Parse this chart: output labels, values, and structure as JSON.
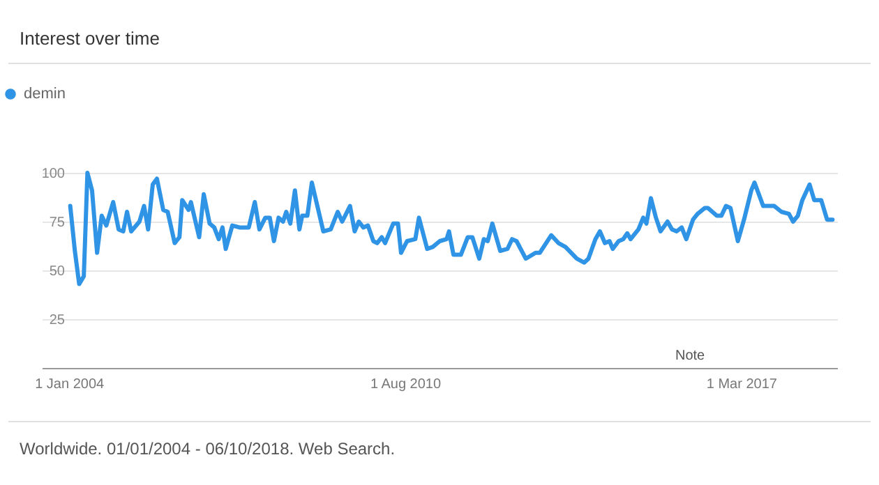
{
  "chart_data": {
    "type": "line",
    "title": "Interest over time",
    "x": [
      "2004-01-11",
      "2004-02-13",
      "2004-03-15",
      "2004-04-17",
      "2004-05-13",
      "2004-06-15",
      "2004-07-21",
      "2004-08-23",
      "2004-09-25",
      "2004-11-13",
      "2004-12-22",
      "2005-01-24",
      "2005-02-20",
      "2005-03-22",
      "2005-05-20",
      "2005-06-22",
      "2005-07-21",
      "2005-08-23",
      "2005-09-22",
      "2005-11-06",
      "2005-12-08",
      "2006-01-27",
      "2006-03-02",
      "2006-03-22",
      "2006-05-06",
      "2006-05-23",
      "2006-07-21",
      "2006-08-23",
      "2006-10-04",
      "2006-11-06",
      "2006-12-08",
      "2007-01-04",
      "2007-01-27",
      "2007-03-15",
      "2007-05-06",
      "2007-07-11",
      "2007-08-23",
      "2007-09-25",
      "2007-11-06",
      "2007-12-08",
      "2008-01-07",
      "2008-02-09",
      "2008-03-12",
      "2008-04-04",
      "2008-05-03",
      "2008-06-05",
      "2008-07-07",
      "2008-07-27",
      "2008-09-02",
      "2008-10-04",
      "2008-11-09",
      "2008-12-25",
      "2009-02-16",
      "2009-04-07",
      "2009-05-09",
      "2009-07-04",
      "2009-08-06",
      "2009-09-05",
      "2009-10-07",
      "2009-11-09",
      "2009-12-18",
      "2010-01-14",
      "2010-02-16",
      "2010-03-12",
      "2010-05-09",
      "2010-06-12",
      "2010-07-04",
      "2010-08-16",
      "2010-10-14",
      "2010-11-09",
      "2011-01-07",
      "2011-02-16",
      "2011-04-07",
      "2011-05-26",
      "2011-06-12",
      "2011-07-14",
      "2011-09-05",
      "2011-10-24",
      "2011-11-26",
      "2012-01-14",
      "2012-02-16",
      "2012-03-15",
      "2012-04-17",
      "2012-06-12",
      "2012-08-03",
      "2012-09-05",
      "2012-10-07",
      "2012-12-12",
      "2013-02-20",
      "2013-03-22",
      "2013-06-12",
      "2013-08-03",
      "2013-09-22",
      "2013-12-12",
      "2014-02-03",
      "2014-03-05",
      "2014-04-24",
      "2014-05-26",
      "2014-07-01",
      "2014-08-03",
      "2014-08-26",
      "2014-10-07",
      "2014-11-09",
      "2014-12-08",
      "2015-01-01",
      "2015-02-26",
      "2015-04-01",
      "2015-04-24",
      "2015-05-26",
      "2015-07-01",
      "2015-08-03",
      "2015-09-22",
      "2015-10-24",
      "2015-11-26",
      "2016-01-01",
      "2016-02-03",
      "2016-03-22",
      "2016-04-24",
      "2016-06-15",
      "2016-07-07",
      "2016-09-08",
      "2016-10-11",
      "2016-11-13",
      "2016-12-15",
      "2017-02-06",
      "2017-03-22",
      "2017-05-13",
      "2017-06-05",
      "2017-08-06",
      "2017-10-24",
      "2017-12-15",
      "2018-02-06",
      "2018-03-08",
      "2018-04-11",
      "2018-05-13",
      "2018-07-04",
      "2018-08-06",
      "2018-09-25",
      "2018-11-06",
      "2018-12-15"
    ],
    "series": [
      {
        "name": "demin",
        "color": "#2f93e6",
        "values": [
          83,
          60,
          43,
          47,
          100,
          91,
          59,
          78,
          73,
          85,
          71,
          70,
          80,
          70,
          75,
          83,
          71,
          94,
          97,
          81,
          80,
          64,
          67,
          86,
          81,
          85,
          67,
          89,
          74,
          72,
          66,
          72,
          61,
          73,
          72,
          72,
          85,
          71,
          77,
          77,
          65,
          77,
          75,
          80,
          74,
          91,
          71,
          78,
          78,
          95,
          84,
          70,
          71,
          80,
          75,
          83,
          70,
          75,
          72,
          73,
          65,
          64,
          67,
          64,
          74,
          74,
          59,
          65,
          66,
          77,
          61,
          62,
          65,
          66,
          70,
          58,
          58,
          67,
          67,
          56,
          66,
          65,
          74,
          60,
          61,
          66,
          65,
          56,
          59,
          59,
          68,
          64,
          62,
          56,
          54,
          56,
          66,
          70,
          64,
          65,
          61,
          65,
          66,
          69,
          66,
          71,
          77,
          74,
          87,
          77,
          70,
          75,
          71,
          70,
          72,
          66,
          76,
          79,
          82,
          82,
          78,
          78,
          83,
          82,
          65,
          76,
          91,
          95,
          83,
          83,
          80,
          79,
          75,
          78,
          86,
          94,
          86,
          86,
          76,
          76
        ]
      }
    ],
    "xlim": [
      "2003-06-22",
      "2019-01-17"
    ],
    "xticks": [
      {
        "value": "2004-01-01",
        "label": "1 Jan 2004"
      },
      {
        "value": "2010-08-01",
        "label": "1 Aug 2010"
      },
      {
        "value": "2017-03-01",
        "label": "1 Mar 2017"
      }
    ],
    "ylim": [
      0,
      100
    ],
    "yticks": [
      25,
      50,
      75,
      100
    ],
    "grid": "y",
    "legend": "top left",
    "marker": "none",
    "line_style": "solid",
    "annotations": [
      "Note",
      "Worldwide. 01/01/2004 - 06/10/2018. Web Search."
    ]
  }
}
